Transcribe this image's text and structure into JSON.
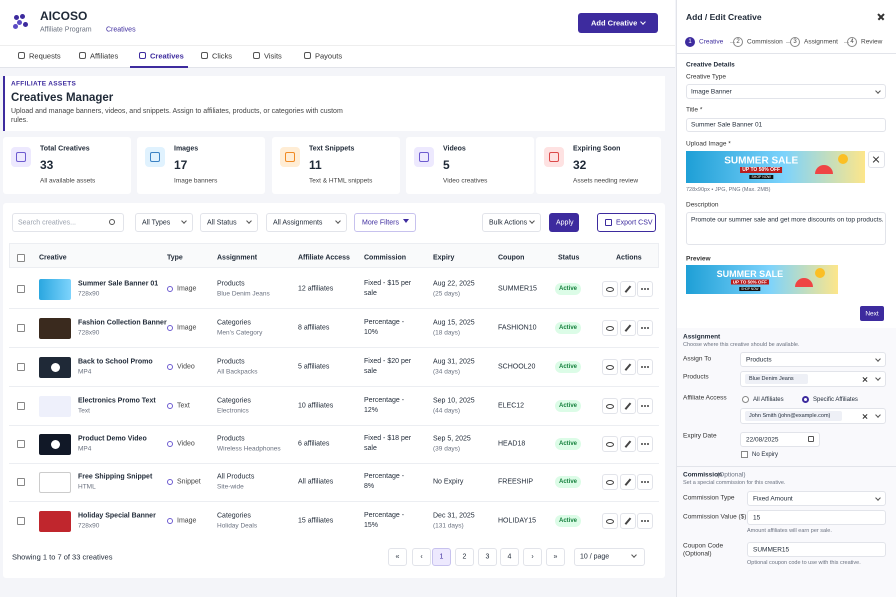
{
  "header": {
    "brand": "AICOSO",
    "breadcrumb_root": "Affiliate Program",
    "breadcrumb_current": "Creatives",
    "add_button": "Add Creative"
  },
  "tabs": [
    "Requests",
    "Affiliates",
    "Creatives",
    "Clicks",
    "Visits",
    "Payouts"
  ],
  "section": {
    "eyebrow": "AFFILIATE ASSETS",
    "title": "Creatives Manager",
    "description": "Upload and manage banners, videos, and snippets. Assign to affiliates, products, or categories with custom rules."
  },
  "stats": [
    {
      "label": "Total Creatives",
      "value": 33,
      "caption": "All available assets"
    },
    {
      "label": "Images",
      "value": 17,
      "caption": "Image banners"
    },
    {
      "label": "Text Snippets",
      "value": 11,
      "caption": "Text & HTML snippets"
    },
    {
      "label": "Videos",
      "value": 5,
      "caption": "Video creatives"
    },
    {
      "label": "Expiring Soon",
      "value": 32,
      "caption": "Assets needing review"
    }
  ],
  "filters": {
    "search_placeholder": "Search creatives...",
    "type": "All Types",
    "status": "All Status",
    "assignment": "All Assignments",
    "more": "More Filters",
    "bulk": "Bulk Actions",
    "apply": "Apply",
    "export": "Export CSV"
  },
  "table": {
    "columns": [
      "Creative",
      "Type",
      "Assignment",
      "Affiliate Access",
      "Commission",
      "Expiry",
      "Coupon",
      "Status",
      "Actions"
    ],
    "rows": [
      {
        "name": "Summer Sale Banner 01",
        "size": "728x90",
        "type": "Image",
        "assignment": "Products",
        "assignment_detail": "Blue Denim Jeans",
        "access": "12 affiliates",
        "commission": "Fixed - $15 per sale",
        "expiry": "Aug 22, 2025",
        "expiry_note": "(25 days)",
        "coupon": "SUMMER15",
        "status": "Active"
      },
      {
        "name": "Fashion Collection Banner",
        "size": "728x90",
        "type": "Image",
        "assignment": "Categories",
        "assignment_detail": "Men's Category",
        "access": "8 affiliates",
        "commission": "Percentage - 10%",
        "expiry": "Aug 15, 2025",
        "expiry_note": "(18 days)",
        "coupon": "FASHION10",
        "status": "Active"
      },
      {
        "name": "Back to School Promo",
        "size": "MP4",
        "type": "Video",
        "assignment": "Products",
        "assignment_detail": "All Backpacks",
        "access": "5 affiliates",
        "commission": "Fixed - $20 per sale",
        "expiry": "Aug 31, 2025",
        "expiry_note": "(34 days)",
        "coupon": "SCHOOL20",
        "status": "Active"
      },
      {
        "name": "Electronics Promo Text",
        "size": "Text",
        "type": "Text",
        "assignment": "Categories",
        "assignment_detail": "Electronics",
        "access": "10 affiliates",
        "commission": "Percentage - 12%",
        "expiry": "Sep 10, 2025",
        "expiry_note": "(44 days)",
        "coupon": "ELEC12",
        "status": "Active"
      },
      {
        "name": "Product Demo Video",
        "size": "MP4",
        "type": "Video",
        "assignment": "Products",
        "assignment_detail": "Wireless Headphones",
        "access": "6 affiliates",
        "commission": "Fixed - $18 per sale",
        "expiry": "Sep 5, 2025",
        "expiry_note": "(39 days)",
        "coupon": "HEAD18",
        "status": "Active"
      },
      {
        "name": "Free Shipping Snippet",
        "size": "HTML",
        "type": "Snippet",
        "assignment": "All Products",
        "assignment_detail": "Site-wide",
        "access": "All affiliates",
        "commission": "Percentage - 8%",
        "expiry": "No Expiry",
        "coupon": "FREESHIP",
        "status": "Active"
      },
      {
        "name": "Holiday Special Banner",
        "size": "728x90",
        "type": "Image",
        "assignment": "Categories",
        "assignment_detail": "Holiday Deals",
        "access": "15 affiliates",
        "commission": "Percentage - 15%",
        "expiry": "Dec 31, 2025",
        "expiry_note": "(131 days)",
        "coupon": "HOLIDAY15",
        "status": "Active"
      }
    ]
  },
  "pagination": {
    "summary": "Showing 1 to 7 of 33 creatives",
    "pages": [
      "«",
      "‹",
      1,
      2,
      3,
      4,
      "›",
      "»"
    ],
    "per_page": "10 / page"
  },
  "panel": {
    "title": "Add / Edit Creative",
    "steps": [
      {
        "number": 1,
        "label": "Creative"
      },
      {
        "number": 2,
        "label": "Commission"
      },
      {
        "number": 3,
        "label": "Assignment"
      },
      {
        "number": 4,
        "label": "Review"
      }
    ],
    "details": {
      "heading": "Creative Details",
      "type_label": "Creative Type",
      "type_value": "Image Banner",
      "title_label": "Title *",
      "title_value": "Summer Sale Banner 01",
      "upload_label": "Upload Image *",
      "banner_title": "SUMMER SALE",
      "banner_sub": "UP TO 50% OFF",
      "banner_cta": "SHOP NOW",
      "upload_hint": "728x90px • JPG, PNG (Max. 2MB)",
      "description_label": "Description",
      "description_value": "Promote our summer sale and get more discounts on top products.",
      "preview_label": "Preview",
      "next": "Next"
    },
    "assignment": {
      "heading": "Assignment",
      "subtitle": "Choose where this creative should be available.",
      "assign_to_label": "Assign To",
      "assign_to_value": "Products",
      "products_label": "Products",
      "products_chip": "Blue Denim Jeans",
      "access_label": "Affiliate Access",
      "access_all": "All Affiliates",
      "access_specific": "Specific Affiliates",
      "affiliate_chip": "John Smith (john@example.com)",
      "expiry_label": "Expiry Date",
      "expiry_value": "22/08/2025",
      "no_expiry": "No Expiry"
    },
    "commission": {
      "heading": "Commission",
      "heading_note": "(Optional)",
      "subtitle": "Set a special commission for this creative.",
      "type_label": "Commission Type",
      "type_value": "Fixed Amount",
      "value_label": "Commission Value ($)",
      "value": 15,
      "value_hint": "Amount affiliates will earn per sale.",
      "coupon_label": "Coupon Code",
      "coupon_note": "(Optional)",
      "coupon_value": "SUMMER15",
      "coupon_hint": "Optional coupon code to use with this creative."
    }
  }
}
